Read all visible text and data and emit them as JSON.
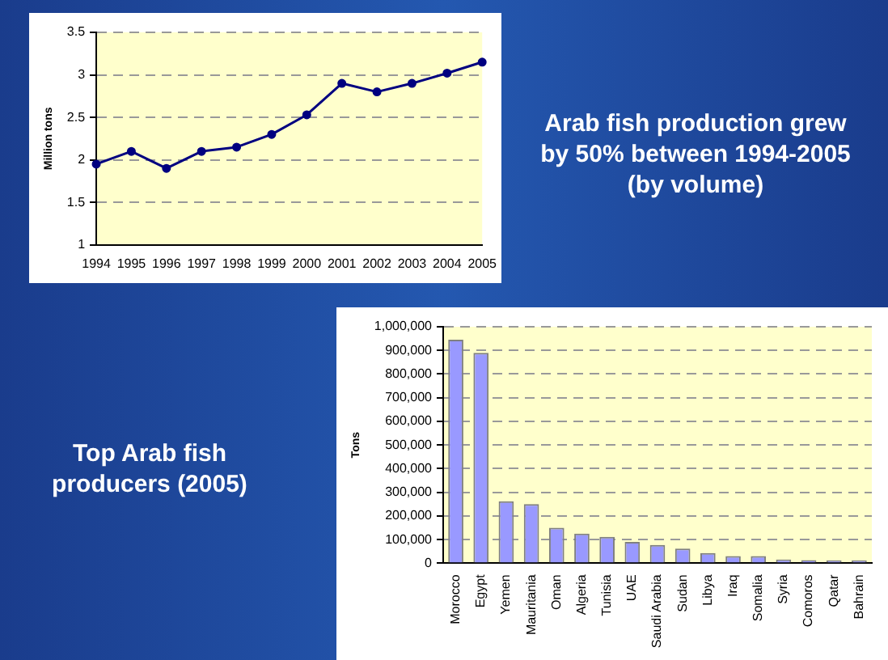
{
  "chart_data": [
    {
      "type": "line",
      "ylabel": "Million tons",
      "categories": [
        "1994",
        "1995",
        "1996",
        "1997",
        "1998",
        "1999",
        "2000",
        "2001",
        "2002",
        "2003",
        "2004",
        "2005"
      ],
      "series": [
        {
          "color": "#000080",
          "values": [
            1.95,
            2.1,
            1.9,
            2.1,
            2.15,
            2.3,
            2.53,
            2.9,
            2.8,
            2.9,
            3.02,
            3.15
          ]
        }
      ],
      "ylim": [
        1,
        3.5
      ],
      "yticks": [
        1,
        1.5,
        2,
        2.5,
        3,
        3.5
      ],
      "grid": "y",
      "line_style": "solid",
      "marker": "circle",
      "legend": false
    },
    {
      "type": "other",
      "title": "Arab fish production grew by 50% between 1994-2005 (by volume)"
    },
    {
      "type": "other",
      "title": "Top Arab fish producers (2005)"
    },
    {
      "type": "bar",
      "ylabel": "Tons",
      "categories": [
        "Morocco",
        "Egypt",
        "Yemen",
        "Mauritania",
        "Oman",
        "Algeria",
        "Tunisia",
        "UAE",
        "Saudi Arabia",
        "Sudan",
        "Libya",
        "Iraq",
        "Somalia",
        "Syria",
        "Comoros",
        "Qatar",
        "Bahrain"
      ],
      "series": [
        {
          "color": "#9999ff",
          "values": [
            945000,
            890000,
            262000,
            250000,
            150000,
            125000,
            112000,
            90000,
            77000,
            62000,
            43000,
            30000,
            30000,
            16000,
            13000,
            12000,
            12000
          ]
        }
      ],
      "ylim": [
        0,
        1000000
      ],
      "yticks": [
        0,
        {
          "value": 100000,
          "label": "100,000"
        },
        {
          "value": 200000,
          "label": "200,000"
        },
        {
          "value": 300000,
          "label": "300,000"
        },
        {
          "value": 400000,
          "label": "400,000"
        },
        {
          "value": 500000,
          "label": "500,000"
        },
        {
          "value": 600000,
          "label": "600,000"
        },
        {
          "value": 700000,
          "label": "700,000"
        },
        {
          "value": 800000,
          "label": "800,000"
        },
        {
          "value": 900000,
          "label": "900,000"
        },
        {
          "value": 1000000,
          "label": "1,000,000"
        }
      ],
      "grid": "y",
      "legend": false
    }
  ]
}
